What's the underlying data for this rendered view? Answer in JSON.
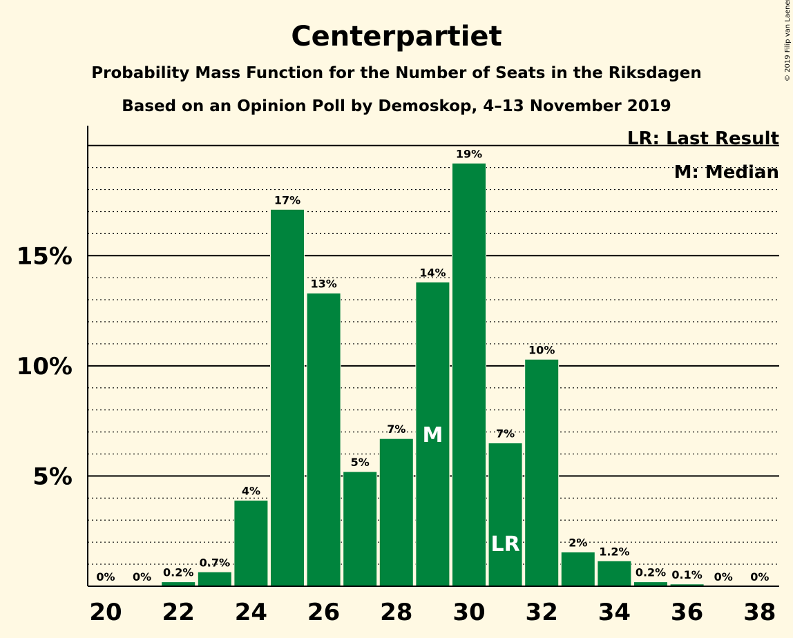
{
  "chart_data": {
    "type": "bar",
    "title": "Centerpartiet",
    "subtitle_1": "Probability Mass Function for the Number of Seats in the Riksdagen",
    "subtitle_2": "Based on an Opinion Poll by Demoskop, 4–13 November 2019",
    "copyright": "© 2019 Filip van Laenen",
    "x": [
      20,
      21,
      22,
      23,
      24,
      25,
      26,
      27,
      28,
      29,
      30,
      31,
      32,
      33,
      34,
      35,
      36,
      37,
      38
    ],
    "values": [
      0,
      0,
      0.2,
      0.65,
      3.9,
      17.1,
      13.3,
      5.2,
      6.7,
      13.8,
      19.2,
      6.5,
      10.3,
      1.55,
      1.15,
      0.2,
      0.1,
      0,
      0
    ],
    "data_labels": [
      "0%",
      "0%",
      "0.2%",
      "0.7%",
      "4%",
      "17%",
      "13%",
      "5%",
      "7%",
      "14%",
      "19%",
      "7%",
      "10%",
      "2%",
      "1.2%",
      "0.2%",
      "0.1%",
      "0%",
      "0%"
    ],
    "x_tick_labels": [
      "20",
      "22",
      "24",
      "26",
      "28",
      "30",
      "32",
      "34",
      "36",
      "38"
    ],
    "y_tick_labels": [
      "5%",
      "10%",
      "15%"
    ],
    "y_tick_values": [
      5,
      10,
      15
    ],
    "ylim": [
      0,
      20.9
    ],
    "median_seat": 29,
    "median_label": "M",
    "last_result_seat": 31,
    "last_result_label": "LR",
    "legend": [
      "LR: Last Result",
      "M: Median"
    ],
    "legend_position": "top-right",
    "bar_color": "#00843D",
    "background_color": "#FFF9E3",
    "grid": "dotted minor lines every 1%, solid major lines every 5%"
  }
}
